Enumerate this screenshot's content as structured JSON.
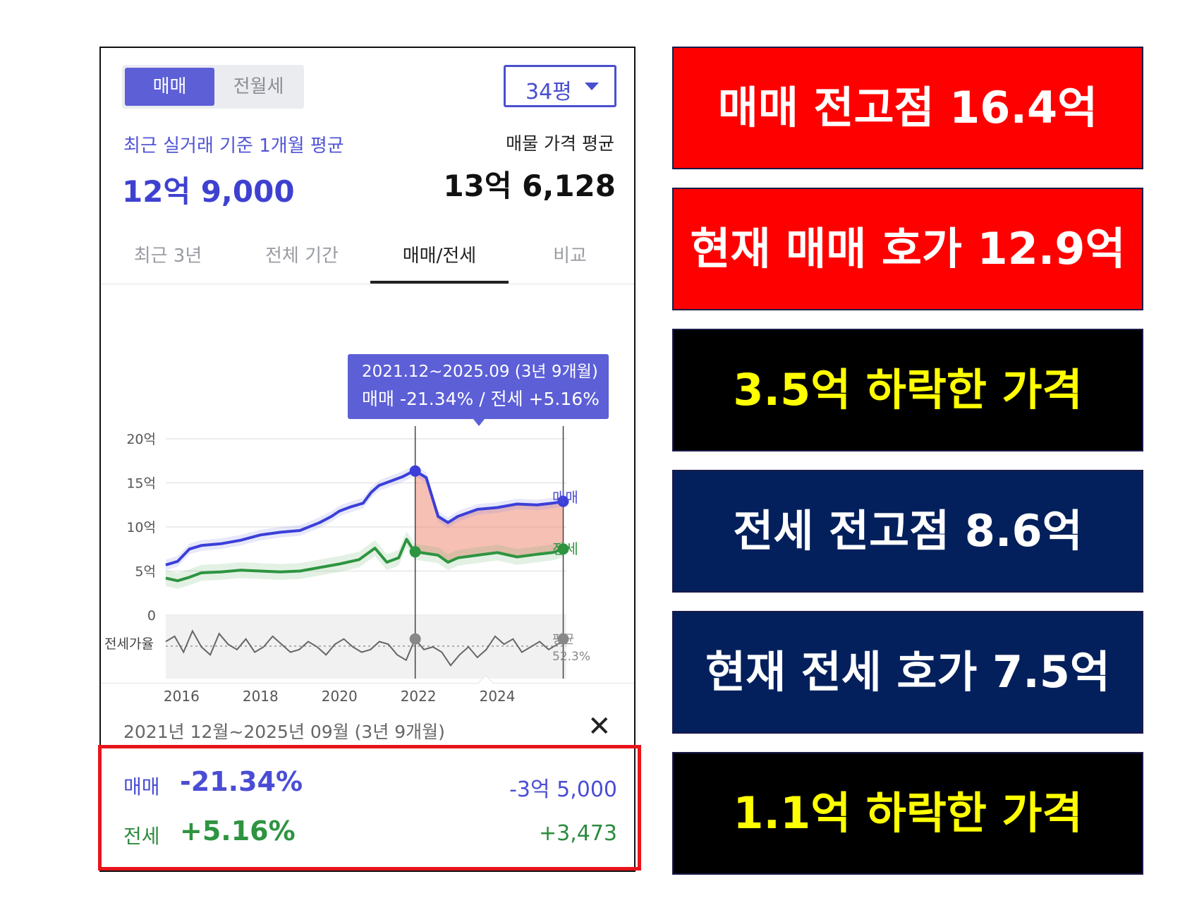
{
  "toggle": {
    "active": "매매",
    "other": "전월세"
  },
  "size_select": {
    "value": "34평"
  },
  "summary": {
    "recent_label": "최근 실거래 기준 1개월 평균",
    "recent_value": "12억 9,000",
    "listing_label": "매물 가격 평균",
    "listing_value": "13억 6,128"
  },
  "tabs": [
    "최근 3년",
    "전체 기간",
    "매매/전세",
    "비교"
  ],
  "chart_tooltip": {
    "line1": "2021.12~2025.09 (3년 9개월)",
    "line2": "매매 -21.34%  /  전세 +5.16%"
  },
  "chart_labels": {
    "sale_series": "매매",
    "jeonse_series": "전세",
    "ratio_label": "전세가율",
    "avg_label": "평균",
    "avg_value": "52.3%"
  },
  "chart_data": {
    "type": "line",
    "y_ticks": [
      "20억",
      "15억",
      "10억",
      "5억",
      "0"
    ],
    "ylim": [
      0,
      20
    ],
    "x_ticks": [
      "2016",
      "2018",
      "2020",
      "2022",
      "2024"
    ],
    "xlim": [
      2015.6,
      2025.75
    ],
    "highlight_range": [
      2021.92,
      2025.67
    ],
    "series": [
      {
        "name": "매매",
        "color": "#3b3fd8",
        "points": [
          [
            2015.6,
            5.7
          ],
          [
            2015.9,
            6.1
          ],
          [
            2016.2,
            7.5
          ],
          [
            2016.5,
            7.9
          ],
          [
            2017.0,
            8.1
          ],
          [
            2017.5,
            8.5
          ],
          [
            2018.0,
            9.1
          ],
          [
            2018.5,
            9.4
          ],
          [
            2019.0,
            9.6
          ],
          [
            2019.5,
            10.5
          ],
          [
            2019.8,
            11.2
          ],
          [
            2020.0,
            11.8
          ],
          [
            2020.3,
            12.3
          ],
          [
            2020.6,
            12.7
          ],
          [
            2020.8,
            13.9
          ],
          [
            2021.0,
            14.7
          ],
          [
            2021.3,
            15.2
          ],
          [
            2021.6,
            15.7
          ],
          [
            2021.9,
            16.4
          ],
          [
            2022.2,
            15.6
          ],
          [
            2022.5,
            11.2
          ],
          [
            2022.75,
            10.5
          ],
          [
            2023.0,
            11.2
          ],
          [
            2023.5,
            12.0
          ],
          [
            2024.0,
            12.2
          ],
          [
            2024.5,
            12.6
          ],
          [
            2025.0,
            12.5
          ],
          [
            2025.4,
            12.7
          ],
          [
            2025.67,
            12.9
          ]
        ]
      },
      {
        "name": "전세",
        "color": "#2e9440",
        "points": [
          [
            2015.6,
            4.2
          ],
          [
            2015.9,
            3.9
          ],
          [
            2016.2,
            4.3
          ],
          [
            2016.5,
            4.8
          ],
          [
            2017.0,
            4.9
          ],
          [
            2017.5,
            5.1
          ],
          [
            2018.0,
            5.0
          ],
          [
            2018.5,
            4.9
          ],
          [
            2019.0,
            5.0
          ],
          [
            2019.5,
            5.4
          ],
          [
            2020.0,
            5.8
          ],
          [
            2020.5,
            6.3
          ],
          [
            2020.9,
            7.6
          ],
          [
            2021.2,
            6.0
          ],
          [
            2021.5,
            6.5
          ],
          [
            2021.7,
            8.6
          ],
          [
            2021.9,
            7.2
          ],
          [
            2022.2,
            7.0
          ],
          [
            2022.5,
            6.8
          ],
          [
            2022.75,
            6.0
          ],
          [
            2023.0,
            6.5
          ],
          [
            2023.5,
            6.8
          ],
          [
            2024.0,
            7.1
          ],
          [
            2024.5,
            6.6
          ],
          [
            2025.0,
            6.9
          ],
          [
            2025.4,
            7.1
          ],
          [
            2025.67,
            7.5
          ]
        ]
      }
    ],
    "ratio_series": {
      "name": "전세가율",
      "average": 52.3,
      "values": [
        54,
        56,
        50,
        58,
        52,
        49,
        57,
        53,
        51,
        55,
        50,
        52,
        56,
        53,
        50,
        51,
        54,
        52,
        49,
        53,
        55,
        52,
        50,
        51,
        54,
        53,
        49,
        47,
        55,
        51,
        52,
        50,
        45,
        49,
        52,
        48,
        51,
        56,
        53,
        55,
        50,
        52,
        54,
        51,
        53,
        55
      ]
    }
  },
  "detail": {
    "period_label": "2021년 12월~2025년 09월 (3년 9개월)",
    "close_icon": "close-icon",
    "sale": {
      "name": "매매",
      "pct": "-21.34%",
      "amount": "-3억 5,000"
    },
    "jeonse": {
      "name": "전세",
      "pct": "+5.16%",
      "amount": "+3,473"
    }
  },
  "badges": [
    {
      "text": "매매 전고점 16.4억",
      "bg": "#ff0000",
      "fg": "#ffffff"
    },
    {
      "text": "현재 매매 호가 12.9억",
      "bg": "#ff0000",
      "fg": "#ffffff"
    },
    {
      "text": "3.5억 하락한 가격",
      "bg": "#000000",
      "fg": "#ffff00"
    },
    {
      "text": "전세 전고점 8.6억",
      "bg": "#03205c",
      "fg": "#ffffff"
    },
    {
      "text": "현재 전세 호가 7.5억",
      "bg": "#03205c",
      "fg": "#ffffff"
    },
    {
      "text": "1.1억 하락한 가격",
      "bg": "#000000",
      "fg": "#ffff00"
    }
  ]
}
